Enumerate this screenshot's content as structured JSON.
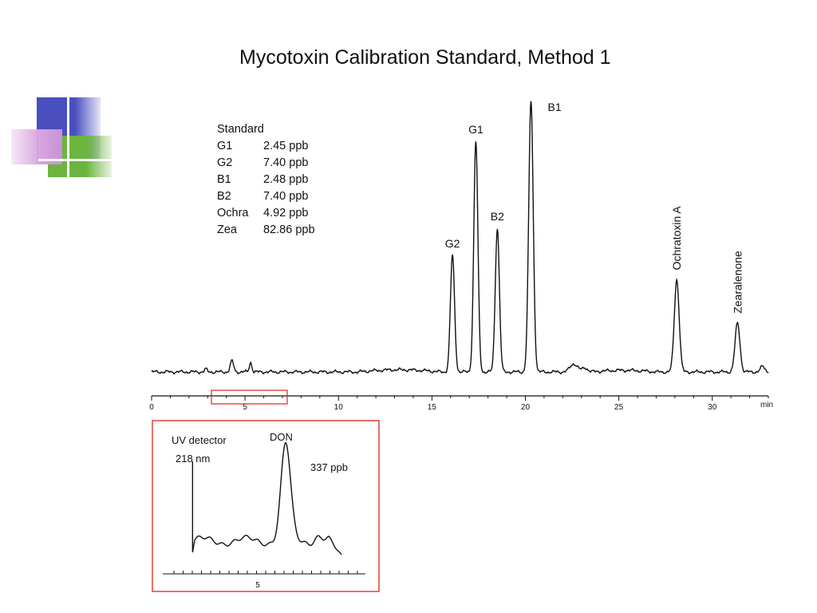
{
  "slide": {
    "title": "Mycotoxin Calibration Standard, Method 1"
  },
  "legend": {
    "heading": "Standard",
    "rows": [
      {
        "name": "G1",
        "value": "2.45 ppb"
      },
      {
        "name": "G2",
        "value": "7.40 ppb"
      },
      {
        "name": "B1",
        "value": "2.48 ppb"
      },
      {
        "name": "B2",
        "value": "7.40 ppb"
      },
      {
        "name": "Ochra",
        "value": "4.92 ppb"
      },
      {
        "name": "Zea",
        "value": "82.86 ppb"
      }
    ]
  },
  "colors": {
    "trace": "#111111",
    "inset_border": "#d9261c",
    "deco_blue": "#4a4fc0",
    "deco_green": "#6bb53f",
    "deco_pink": "#d9a6e0"
  },
  "chart_data": [
    {
      "type": "line",
      "title": "Mycotoxin Calibration Standard, Method 1",
      "x_unit": "min",
      "xlim": [
        0,
        33
      ],
      "x_ticks": [
        0,
        5,
        10,
        15,
        20,
        25,
        30
      ],
      "x_tick_labels": [
        "0",
        "5",
        "10",
        "15",
        "20",
        "25",
        "30"
      ],
      "peaks": [
        {
          "label": "",
          "x": 2.9,
          "height": 0.01,
          "width": 0.07
        },
        {
          "label": "",
          "x": 4.3,
          "height": 0.04,
          "width": 0.09
        },
        {
          "label": "",
          "x": 5.3,
          "height": 0.035,
          "width": 0.07
        },
        {
          "label": "G2",
          "x": 16.1,
          "height": 0.43,
          "width": 0.11
        },
        {
          "label": "G1",
          "x": 17.35,
          "height": 0.85,
          "width": 0.11
        },
        {
          "label": "B2",
          "x": 18.5,
          "height": 0.53,
          "width": 0.11
        },
        {
          "label": "B1",
          "x": 20.3,
          "height": 1.0,
          "width": 0.12
        },
        {
          "label": "",
          "x": 22.6,
          "height": 0.03,
          "width": 0.2
        },
        {
          "label": "",
          "x": 23.2,
          "height": 0.015,
          "width": 0.15
        },
        {
          "label": "Ochratoxin A",
          "x": 28.1,
          "height": 0.34,
          "width": 0.13
        },
        {
          "label": "Zearalenone",
          "x": 31.35,
          "height": 0.18,
          "width": 0.13
        },
        {
          "label": "",
          "x": 32.7,
          "height": 0.02,
          "width": 0.12
        }
      ]
    },
    {
      "type": "line",
      "title": "",
      "annotations": [
        "UV detector",
        "218 nm",
        "DON",
        "337 ppb"
      ],
      "x_tick_labels": [
        "5"
      ],
      "peaks": [
        {
          "label": "DON",
          "x": 6.4,
          "height": 1.0,
          "width": 0.22
        }
      ]
    }
  ]
}
